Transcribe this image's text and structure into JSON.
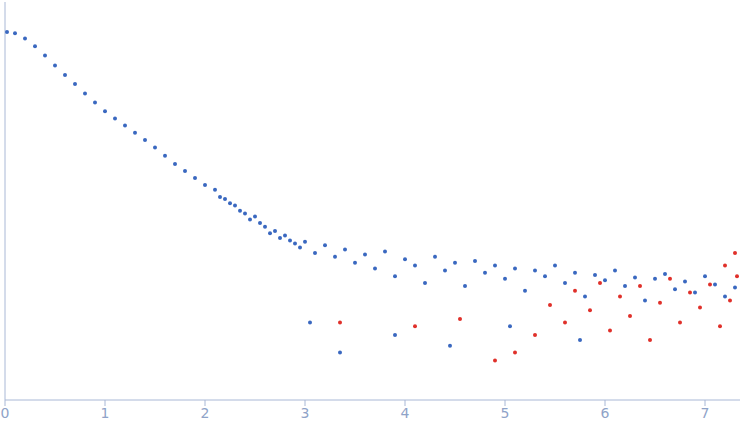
{
  "chart_data": {
    "type": "scatter",
    "log": "y",
    "tick_labels": "x",
    "grid": false,
    "xlim": [
      0,
      7.35
    ],
    "xticks": [
      0,
      1,
      2,
      3,
      4,
      5,
      6,
      7
    ],
    "ylim": [
      0.0002,
      2
    ],
    "yticks": [
      0.001,
      0.01,
      0.1
    ],
    "series": [
      {
        "color": "#3a68c0",
        "marker": "circle",
        "x": [
          0.02,
          0.1,
          0.2,
          0.3,
          0.4,
          0.5,
          0.6,
          0.7,
          0.8,
          0.9,
          1.0,
          1.1,
          1.2,
          1.3,
          1.4,
          1.5,
          1.6,
          1.7,
          1.8,
          1.9,
          2.0,
          2.1,
          2.15,
          2.2,
          2.25,
          2.3,
          2.35,
          2.4,
          2.45,
          2.5,
          2.55,
          2.6,
          2.65,
          2.7,
          2.75,
          2.8,
          2.85,
          2.9,
          2.95,
          3.0,
          3.05,
          3.1,
          3.2,
          3.3,
          3.35,
          3.4,
          3.5,
          3.6,
          3.7,
          3.8,
          3.9,
          3.9,
          4.0,
          4.1,
          4.2,
          4.3,
          4.4,
          4.45,
          4.5,
          4.6,
          4.7,
          4.8,
          4.9,
          5.0,
          5.05,
          5.1,
          5.2,
          5.3,
          5.4,
          5.5,
          5.6,
          5.7,
          5.75,
          5.8,
          5.9,
          6.0,
          6.1,
          6.2,
          6.3,
          6.4,
          6.5,
          6.6,
          6.7,
          6.8,
          6.9,
          7.0,
          7.1,
          7.2,
          7.3
        ],
        "values": [
          1.0,
          0.97,
          0.86,
          0.72,
          0.58,
          0.46,
          0.37,
          0.3,
          0.24,
          0.195,
          0.16,
          0.135,
          0.115,
          0.097,
          0.082,
          0.069,
          0.057,
          0.047,
          0.04,
          0.034,
          0.029,
          0.026,
          0.022,
          0.021,
          0.019,
          0.018,
          0.016,
          0.015,
          0.013,
          0.014,
          0.012,
          0.011,
          0.0095,
          0.01,
          0.0085,
          0.009,
          0.008,
          0.0075,
          0.0068,
          0.0078,
          0.0012,
          0.006,
          0.0072,
          0.0055,
          0.0006,
          0.0065,
          0.0048,
          0.0058,
          0.0042,
          0.0062,
          0.0035,
          0.0009,
          0.0052,
          0.0045,
          0.003,
          0.0055,
          0.004,
          0.0007,
          0.0048,
          0.0028,
          0.005,
          0.0038,
          0.0045,
          0.0033,
          0.0011,
          0.0042,
          0.0025,
          0.004,
          0.0035,
          0.0045,
          0.003,
          0.0038,
          0.0008,
          0.0022,
          0.0036,
          0.0032,
          0.004,
          0.0028,
          0.0034,
          0.002,
          0.0033,
          0.0037,
          0.0026,
          0.0031,
          0.0024,
          0.0035,
          0.0029,
          0.0022,
          0.0027
        ]
      },
      {
        "color": "#e0302a",
        "marker": "circle",
        "x": [
          3.35,
          4.1,
          4.55,
          4.9,
          5.1,
          5.3,
          5.45,
          5.6,
          5.7,
          5.85,
          5.95,
          6.05,
          6.15,
          6.25,
          6.35,
          6.45,
          6.55,
          6.65,
          6.75,
          6.85,
          6.95,
          7.05,
          7.15,
          7.2,
          7.25,
          7.3,
          7.32
        ],
        "values": [
          0.0012,
          0.0011,
          0.0013,
          0.0005,
          0.0006,
          0.0009,
          0.0018,
          0.0012,
          0.0025,
          0.0016,
          0.003,
          0.001,
          0.0022,
          0.0014,
          0.0028,
          0.0008,
          0.0019,
          0.0033,
          0.0012,
          0.0024,
          0.0017,
          0.0029,
          0.0011,
          0.0045,
          0.002,
          0.006,
          0.0035
        ]
      }
    ]
  }
}
